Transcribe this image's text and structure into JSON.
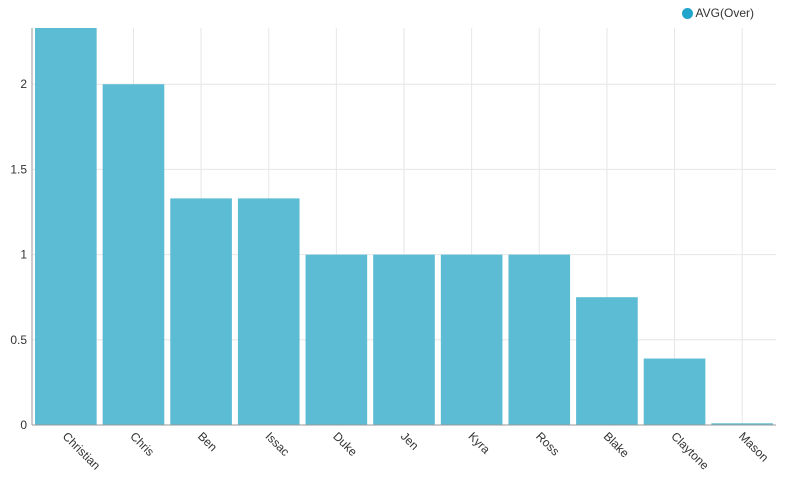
{
  "chart_data": {
    "type": "bar",
    "categories": [
      "Christian",
      "Chris",
      "Ben",
      "Issac",
      "Duke",
      "Jen",
      "Kyra",
      "Ross",
      "Blake",
      "Claytone",
      "Mason"
    ],
    "series": [
      {
        "name": "AVG(Over)",
        "values": [
          2.33,
          2.0,
          1.33,
          1.33,
          1.0,
          1.0,
          1.0,
          1.0,
          0.75,
          0.39,
          0.01
        ]
      }
    ],
    "ylim": [
      0,
      2.33
    ],
    "yticks": [
      0,
      0.5,
      1,
      1.5,
      2
    ],
    "ytick_labels": [
      "0",
      "0.5",
      "1",
      "1.5",
      "2"
    ],
    "grid": true,
    "legend_position": "top-right",
    "colors": {
      "bar": "#5bbcd4",
      "legend_swatch": "#1fa4cc",
      "grid": "#e6e6e6",
      "axis": "#999999"
    }
  }
}
